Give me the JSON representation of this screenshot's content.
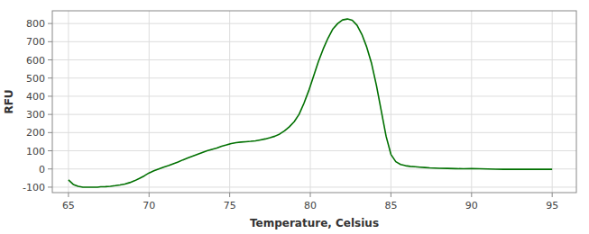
{
  "chart_data": {
    "type": "line",
    "xlabel": "Temperature, Celsius",
    "ylabel": "RFU",
    "x": [
      65.0,
      65.3,
      65.6,
      65.9,
      66.2,
      66.5,
      66.8,
      67.0,
      67.3,
      67.6,
      67.9,
      68.2,
      68.5,
      68.8,
      69.1,
      69.4,
      69.7,
      70.0,
      70.3,
      70.6,
      70.9,
      71.2,
      71.5,
      71.8,
      72.1,
      72.4,
      72.7,
      73.0,
      73.3,
      73.6,
      73.9,
      74.2,
      74.5,
      74.8,
      75.1,
      75.4,
      75.7,
      76.0,
      76.3,
      76.6,
      76.9,
      77.2,
      77.5,
      77.8,
      78.1,
      78.4,
      78.7,
      79.0,
      79.3,
      79.6,
      79.9,
      80.2,
      80.5,
      80.8,
      81.1,
      81.4,
      81.7,
      82.0,
      82.3,
      82.6,
      82.9,
      83.2,
      83.5,
      83.8,
      84.1,
      84.4,
      84.7,
      85.0,
      85.3,
      85.6,
      85.9,
      86.2,
      86.5,
      86.8,
      87.1,
      87.4,
      87.7,
      88.0,
      88.5,
      89.0,
      89.5,
      90.0,
      90.5,
      91.0,
      91.5,
      92.0,
      92.5,
      93.0,
      93.5,
      94.0,
      94.5,
      95.0
    ],
    "values": [
      -60,
      -85,
      -95,
      -100,
      -100,
      -100,
      -100,
      -98,
      -97,
      -95,
      -92,
      -88,
      -83,
      -75,
      -65,
      -52,
      -38,
      -22,
      -10,
      0,
      10,
      18,
      28,
      38,
      50,
      60,
      70,
      80,
      90,
      100,
      108,
      115,
      125,
      132,
      140,
      145,
      148,
      150,
      152,
      155,
      160,
      165,
      172,
      180,
      192,
      210,
      232,
      260,
      300,
      360,
      430,
      510,
      590,
      660,
      720,
      770,
      800,
      820,
      825,
      818,
      790,
      740,
      670,
      580,
      460,
      320,
      180,
      80,
      40,
      25,
      18,
      14,
      12,
      10,
      8,
      6,
      5,
      4,
      3,
      2,
      1,
      2,
      1,
      0,
      -1,
      -2,
      -1,
      -2,
      -1,
      -2,
      -1,
      -2
    ],
    "color": "#007000",
    "xlim": [
      64.0,
      96.5
    ],
    "ylim": [
      -130,
      870
    ],
    "xticks": [
      65,
      70,
      75,
      80,
      85,
      90,
      95
    ],
    "yticks": [
      -100,
      0,
      100,
      200,
      300,
      400,
      500,
      600,
      700,
      800
    ],
    "grid": true
  }
}
